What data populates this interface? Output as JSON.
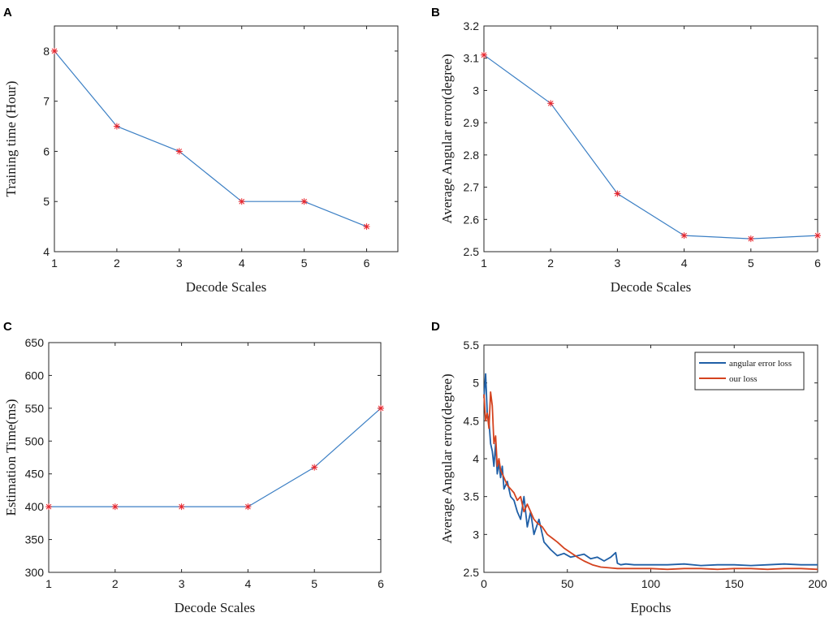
{
  "chart_data": [
    {
      "panel": "A",
      "type": "line",
      "xlabel": "Decode Scales",
      "ylabel": "Training time (Hour)",
      "x": [
        1,
        2,
        3,
        4,
        5,
        6
      ],
      "y": [
        8,
        6.5,
        6,
        5,
        5,
        4.5
      ],
      "xlim": [
        1,
        6.5
      ],
      "ylim": [
        4,
        8.5
      ],
      "xticks": [
        1,
        2,
        3,
        4,
        5,
        6
      ],
      "yticks": [
        4,
        5,
        6,
        7,
        8
      ],
      "marker": "*",
      "line_color": "#3b7fc4",
      "marker_color": "#e8242b"
    },
    {
      "panel": "B",
      "type": "line",
      "xlabel": "Decode Scales",
      "ylabel": "Average Angular error(degree)",
      "x": [
        1,
        2,
        3,
        4,
        5,
        6
      ],
      "y": [
        3.11,
        2.96,
        2.68,
        2.55,
        2.54,
        2.55
      ],
      "xlim": [
        1,
        6
      ],
      "ylim": [
        2.5,
        3.2
      ],
      "xticks": [
        1,
        2,
        3,
        4,
        5,
        6
      ],
      "yticks": [
        2.5,
        2.6,
        2.7,
        2.8,
        2.9,
        3,
        3.1,
        3.2
      ],
      "marker": "*",
      "line_color": "#3b7fc4",
      "marker_color": "#e8242b"
    },
    {
      "panel": "C",
      "type": "line",
      "xlabel": "Decode Scales",
      "ylabel": "Estimation Time(ms)",
      "x": [
        1,
        2,
        3,
        4,
        5,
        6
      ],
      "y": [
        400,
        400,
        400,
        400,
        460,
        550
      ],
      "xlim": [
        1,
        6
      ],
      "ylim": [
        300,
        650
      ],
      "xticks": [
        1,
        2,
        3,
        4,
        5,
        6
      ],
      "yticks": [
        300,
        350,
        400,
        450,
        500,
        550,
        600,
        650
      ],
      "marker": "*",
      "line_color": "#3b7fc4",
      "marker_color": "#e8242b"
    },
    {
      "panel": "D",
      "type": "line",
      "xlabel": "Epochs",
      "ylabel": "Average Angular error(degree)",
      "xlim": [
        0,
        200
      ],
      "ylim": [
        2.5,
        5.5
      ],
      "xticks": [
        0,
        50,
        100,
        150,
        200
      ],
      "yticks": [
        2.5,
        3,
        3.5,
        4,
        4.5,
        5,
        5.5
      ],
      "legend": "top-right",
      "series": [
        {
          "name": "angular error loss",
          "color": "#1f5fa6",
          "x": [
            0,
            1,
            2,
            3,
            4,
            5,
            6,
            7,
            8,
            9,
            10,
            11,
            12,
            14,
            16,
            18,
            20,
            22,
            24,
            26,
            28,
            30,
            33,
            36,
            40,
            44,
            48,
            52,
            56,
            60,
            64,
            68,
            72,
            76,
            79,
            80,
            82,
            85,
            90,
            95,
            100,
            110,
            120,
            130,
            140,
            150,
            160,
            170,
            180,
            190,
            200
          ],
          "y": [
            4.8,
            5.12,
            4.6,
            4.5,
            4.2,
            4.1,
            3.9,
            4.2,
            3.8,
            3.95,
            3.75,
            3.9,
            3.6,
            3.7,
            3.5,
            3.45,
            3.3,
            3.2,
            3.5,
            3.1,
            3.3,
            3.0,
            3.2,
            2.9,
            2.8,
            2.72,
            2.75,
            2.7,
            2.72,
            2.74,
            2.68,
            2.7,
            2.65,
            2.7,
            2.76,
            2.62,
            2.6,
            2.61,
            2.6,
            2.6,
            2.6,
            2.6,
            2.61,
            2.59,
            2.6,
            2.6,
            2.59,
            2.6,
            2.61,
            2.6,
            2.6
          ]
        },
        {
          "name": "our loss",
          "color": "#d4431f",
          "x": [
            0,
            1,
            2,
            3,
            4,
            5,
            6,
            7,
            8,
            9,
            10,
            12,
            14,
            16,
            18,
            20,
            22,
            24,
            26,
            28,
            30,
            32,
            35,
            38,
            41,
            44,
            48,
            52,
            56,
            60,
            65,
            70,
            75,
            80,
            90,
            100,
            110,
            120,
            130,
            140,
            150,
            160,
            170,
            180,
            190,
            200
          ],
          "y": [
            4.85,
            4.5,
            4.6,
            4.4,
            4.88,
            4.7,
            4.2,
            4.3,
            3.9,
            4.0,
            3.85,
            3.75,
            3.65,
            3.6,
            3.55,
            3.45,
            3.5,
            3.3,
            3.4,
            3.3,
            3.2,
            3.15,
            3.1,
            3.0,
            2.95,
            2.9,
            2.82,
            2.76,
            2.7,
            2.65,
            2.6,
            2.57,
            2.56,
            2.55,
            2.55,
            2.55,
            2.54,
            2.55,
            2.55,
            2.54,
            2.55,
            2.55,
            2.54,
            2.55,
            2.55,
            2.54
          ]
        }
      ]
    }
  ]
}
